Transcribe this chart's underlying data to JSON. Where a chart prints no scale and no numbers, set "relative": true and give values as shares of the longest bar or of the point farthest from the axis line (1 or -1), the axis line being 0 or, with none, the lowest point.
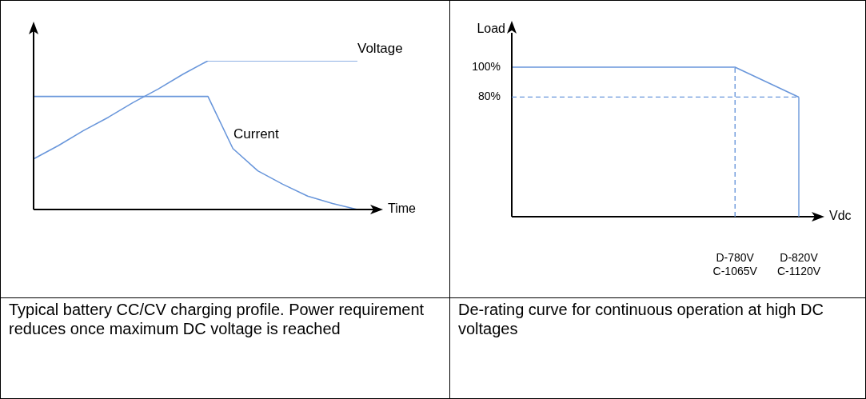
{
  "chart_data": [
    {
      "type": "line",
      "relative": true,
      "xlabel": "Time",
      "categories": [
        null,
        null,
        null,
        null,
        null,
        null,
        null,
        null,
        null,
        null,
        null,
        null,
        null,
        null
      ],
      "series": [
        {
          "name": "Voltage",
          "color": "#6a97db",
          "values": [
            0.34,
            0.43,
            0.53,
            0.62,
            0.72,
            0.81,
            0.91,
            1,
            1,
            1,
            1,
            1,
            1,
            1
          ]
        },
        {
          "name": "Current",
          "color": "#6a97db",
          "values": [
            0.76,
            0.76,
            0.76,
            0.76,
            0.76,
            0.76,
            0.76,
            0.76,
            0.41,
            0.26,
            0.17,
            0.09,
            0.04,
            0
          ]
        }
      ],
      "legend": false,
      "marker": "none",
      "line_style": "solid",
      "annotations": [
        "Typical battery CC/CV charging profile.  Power requirement reduces once maximum DC voltage is reached"
      ]
    },
    {
      "type": "line",
      "xlabel": "Vdc",
      "ylabel": "Load",
      "categories": [
        null,
        null,
        null,
        null,
        null,
        null,
        null,
        "D-780V\nC-1065V",
        null,
        "D-820V\nC-1120V"
      ],
      "series": [
        {
          "color": "#6a97db",
          "values": [
            100,
            null,
            null,
            null,
            null,
            null,
            null,
            100,
            null,
            80
          ]
        }
      ],
      "ylim": [
        0,
        123
      ],
      "yticks": [
        {
          "value": 100,
          "label": "100%"
        },
        {
          "value": 80,
          "label": "80%"
        }
      ],
      "ref_lines": [
        {
          "axis": "y",
          "value": 80,
          "color": "#6a97db",
          "line_style": "dashed"
        },
        {
          "axis": "x",
          "value": "D-780V\nC-1065V",
          "color": "#6a97db",
          "line_style": "dashed"
        },
        {
          "axis": "x",
          "value": "D-820V\nC-1120V",
          "color": "#6a97db",
          "line_style": "solid"
        }
      ],
      "grid": false,
      "legend": false,
      "marker": "none",
      "line_style": "solid",
      "annotations": [
        "De-rating curve for continuous operation at high DC voltages"
      ]
    }
  ]
}
